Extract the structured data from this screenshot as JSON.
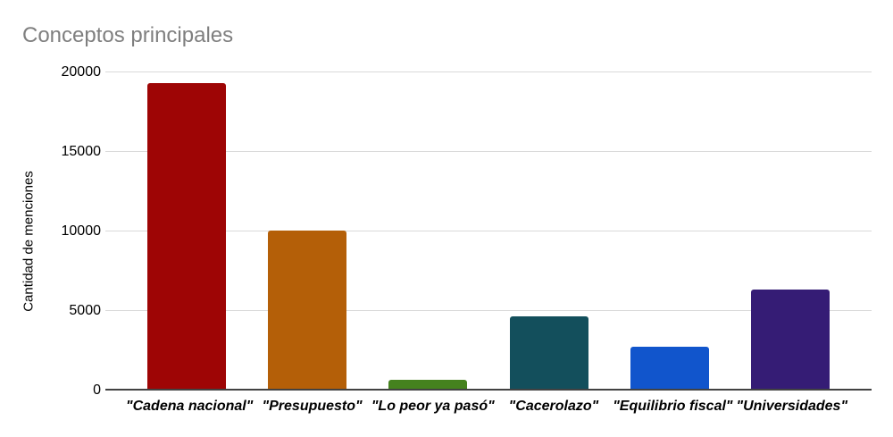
{
  "title": "Conceptos principales",
  "chart_data": {
    "type": "bar",
    "title": "Conceptos principales",
    "categories": [
      "\"Cadena nacional\"",
      "\"Presupuesto\"",
      "\"Lo peor ya pasó\"",
      "\"Cacerolazo\"",
      "\"Equilibrio fiscal\"",
      "\"Universidades\""
    ],
    "values": [
      19300,
      10050,
      700,
      4650,
      2750,
      6350
    ],
    "bar_colors": [
      "#9e0505",
      "#b45f08",
      "#45821e",
      "#134f5c",
      "#1155cc",
      "#351c75"
    ],
    "xlabel": "",
    "ylabel": "Cantidad de menciones",
    "ylim": [
      0,
      20000
    ],
    "yticks": [
      0,
      5000,
      10000,
      15000,
      20000
    ],
    "grid": true,
    "legend": false
  },
  "colors": {
    "background": "#ffffff",
    "title_text": "#7f7f7f",
    "gridline": "#d9d9d9",
    "axis_line": "#424242",
    "tick_label": "#000000",
    "category_label": "#000000"
  }
}
